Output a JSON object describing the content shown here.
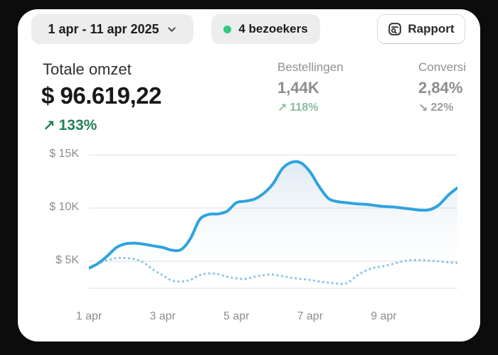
{
  "frame": {
    "background": "#0c0c0c",
    "card_background": "#ffffff"
  },
  "header": {
    "date_range": "1 apr - 11 apr 2025",
    "visitors_badge": "4 bezoekers",
    "visitors_dot_color": "#2ecb7d",
    "report_label": "Rapport"
  },
  "metrics": {
    "primary": {
      "label": "Totale omzet",
      "value": "$ 96.619,22",
      "delta": "133%",
      "delta_arrow": "↗",
      "delta_direction": "up",
      "delta_color": "#24805a"
    },
    "secondary": [
      {
        "label": "Bestellingen",
        "value": "1,44K",
        "delta": "118%",
        "delta_arrow": "↗",
        "delta_direction": "up",
        "delta_color": "#8cbb9e"
      },
      {
        "label": "Conversi",
        "value": "2,84%",
        "delta": "22%",
        "delta_arrow": "↘",
        "delta_direction": "down",
        "delta_color": "#9a9da0"
      }
    ]
  },
  "chart_data": {
    "type": "line",
    "title": "Totale omzet",
    "x_axis": {
      "range_days": [
        1,
        11
      ],
      "tick_days": [
        1,
        3,
        5,
        7,
        9
      ],
      "tick_labels": [
        "1 apr",
        "3 apr",
        "5 apr",
        "7 apr",
        "9 apr"
      ]
    },
    "y_axis": {
      "tick_values_k": [
        15,
        10,
        5
      ],
      "tick_labels": [
        "$ 15K",
        "$ 10K",
        "$ 5K"
      ],
      "unit": "USD, thousands"
    },
    "grid": "horizontal",
    "legend": "none",
    "sample_step_days": 0.25,
    "series": [
      {
        "name": "current_period_revenue",
        "style": "solid",
        "color": "#2fa3df",
        "values_k": [
          4.35,
          4.8,
          5.5,
          6.3,
          6.65,
          6.7,
          6.6,
          6.45,
          6.3,
          6.05,
          6.1,
          7.1,
          8.9,
          9.4,
          9.45,
          9.7,
          10.5,
          10.65,
          10.85,
          11.4,
          12.3,
          13.7,
          14.3,
          14.25,
          13.4,
          12.0,
          10.9,
          10.6,
          10.5,
          10.4,
          10.35,
          10.25,
          10.15,
          10.1,
          10.0,
          9.9,
          9.8,
          9.85,
          10.3,
          11.2,
          11.9
        ]
      },
      {
        "name": "previous_period_revenue",
        "style": "dotted",
        "color": "#8cc6e9",
        "values_k": [
          4.45,
          4.8,
          5.1,
          5.3,
          5.3,
          5.2,
          4.85,
          4.2,
          3.7,
          3.2,
          3.1,
          3.25,
          3.7,
          3.85,
          3.8,
          3.55,
          3.4,
          3.35,
          3.55,
          3.7,
          3.75,
          3.6,
          3.45,
          3.35,
          3.25,
          3.1,
          3.0,
          2.9,
          2.95,
          3.6,
          4.1,
          4.4,
          4.55,
          4.75,
          5.0,
          5.1,
          5.1,
          5.05,
          5.0,
          4.9,
          4.85
        ]
      }
    ]
  }
}
